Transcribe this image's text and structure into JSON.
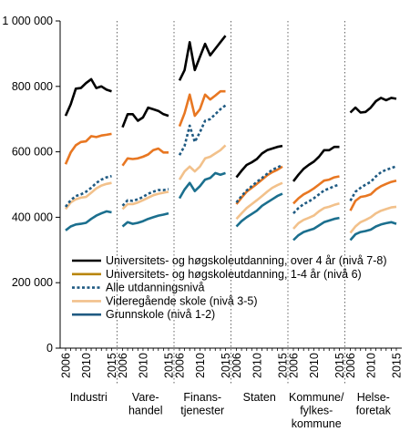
{
  "chart_data": {
    "type": "line",
    "title": "",
    "xlabel": "",
    "ylabel": "",
    "ylim": [
      0,
      1000000
    ],
    "y_ticks": [
      0,
      200000,
      400000,
      600000,
      800000,
      1000000
    ],
    "y_tick_labels": [
      "0",
      "200 000",
      "400 000",
      "600 000",
      "800 000",
      "1 000 000"
    ],
    "x": [
      2006,
      2007,
      2008,
      2009,
      2010,
      2011,
      2012,
      2013,
      2014,
      2015
    ],
    "x_tick_labels": [
      "2006",
      "2010",
      "2015"
    ],
    "grid": false,
    "legend_position": "inside-bottom",
    "panel_separators": "dotted",
    "panels": [
      {
        "category": [
          "Industri"
        ],
        "series": [
          {
            "name": "Universitets- og høgskoleutdanning, over 4 år (nivå 7-8)",
            "values": [
              710000,
              745000,
              793000,
              795000,
              810000,
              822000,
              795000,
              800000,
              790000,
              785000
            ]
          },
          {
            "name": "Universitets- og høgskoleutdanning, 1-4 år (nivå 6)",
            "values": [
              562000,
              598000,
              620000,
              630000,
              632000,
              648000,
              645000,
              650000,
              652000,
              655000
            ]
          },
          {
            "name": "Alle utdanningsnivå",
            "values": [
              432000,
              452000,
              465000,
              470000,
              478000,
              490000,
              505000,
              515000,
              522000,
              526000
            ]
          },
          {
            "name": "Videregående skole (nivå 3-5)",
            "values": [
              425000,
              445000,
              455000,
              460000,
              462000,
              475000,
              488000,
              497000,
              502000,
              505000
            ]
          },
          {
            "name": "Grunnskole (nivå 1-2)",
            "values": [
              360000,
              372000,
              378000,
              380000,
              383000,
              395000,
              405000,
              412000,
              418000,
              415000
            ]
          }
        ]
      },
      {
        "category": [
          "Vare-",
          "handel"
        ],
        "series": [
          {
            "name": "Universitets- og høgskoleutdanning, over 4 år (nivå 7-8)",
            "values": [
              675000,
              715000,
              715000,
              695000,
              705000,
              735000,
              730000,
              725000,
              715000,
              710000
            ]
          },
          {
            "name": "Universitets- og høgskoleutdanning, 1-4 år (nivå 6)",
            "values": [
              558000,
              580000,
              578000,
              580000,
              585000,
              592000,
              605000,
              610000,
              598000,
              598000
            ]
          },
          {
            "name": "Alle utdanningsnivå",
            "values": [
              435000,
              452000,
              450000,
              455000,
              462000,
              472000,
              478000,
              483000,
              483000,
              486000
            ]
          },
          {
            "name": "Videregående skole (nivå 3-5)",
            "values": [
              425000,
              440000,
              440000,
              445000,
              452000,
              460000,
              467000,
              472000,
              475000,
              478000
            ]
          },
          {
            "name": "Grunnskole (nivå 1-2)",
            "values": [
              372000,
              385000,
              380000,
              383000,
              388000,
              395000,
              400000,
              405000,
              408000,
              412000
            ]
          }
        ]
      },
      {
        "category": [
          "Finans-",
          "tjenester"
        ],
        "series": [
          {
            "name": "Universitets- og høgskoleutdanning, over 4 år (nivå 7-8)",
            "values": [
              818000,
              850000,
              935000,
              850000,
              890000,
              930000,
              895000,
              915000,
              935000,
              955000
            ]
          },
          {
            "name": "Universitets- og høgskoleutdanning, 1-4 år (nivå 6)",
            "values": [
              678000,
              718000,
              775000,
              710000,
              730000,
              775000,
              760000,
              772000,
              785000,
              785000
            ]
          },
          {
            "name": "Alle utdanningsnivå",
            "values": [
              590000,
              618000,
              680000,
              630000,
              660000,
              695000,
              700000,
              715000,
              730000,
              742000
            ]
          },
          {
            "name": "Videregående skole (nivå 3-5)",
            "values": [
              515000,
              540000,
              555000,
              540000,
              555000,
              580000,
              585000,
              595000,
              605000,
              620000
            ]
          },
          {
            "name": "Grunnskole (nivå 1-2)",
            "values": [
              458000,
              485000,
              505000,
              480000,
              495000,
              515000,
              520000,
              535000,
              530000,
              535000
            ]
          }
        ]
      },
      {
        "category": [
          "Staten"
        ],
        "series": [
          {
            "name": "Universitets- og høgskoleutdanning, over 4 år (nivå 7-8)",
            "values": [
              522000,
              542000,
              560000,
              568000,
              578000,
              595000,
              605000,
              610000,
              615000,
              618000
            ]
          },
          {
            "name": "Universitets- og høgskoleutdanning, 1-4 år (nivå 6)",
            "values": [
              440000,
              460000,
              478000,
              490000,
              502000,
              515000,
              528000,
              538000,
              545000,
              555000
            ]
          },
          {
            "name": "Alle utdanningsnivå",
            "values": [
              445000,
              465000,
              482000,
              495000,
              508000,
              520000,
              533000,
              545000,
              552000,
              560000
            ]
          },
          {
            "name": "Videregående skole (nivå 3-5)",
            "values": [
              395000,
              412000,
              428000,
              440000,
              452000,
              465000,
              478000,
              490000,
              498000,
              505000
            ]
          },
          {
            "name": "Grunnskole (nivå 1-2)",
            "values": [
              372000,
              388000,
              400000,
              410000,
              420000,
              435000,
              445000,
              455000,
              465000,
              472000
            ]
          }
        ]
      },
      {
        "category": [
          "Kommune/",
          "fylkes-",
          "kommune"
        ],
        "series": [
          {
            "name": "Universitets- og høgskoleutdanning, over 4 år (nivå 7-8)",
            "values": [
              510000,
              530000,
              548000,
              560000,
              570000,
              585000,
              605000,
              605000,
              615000,
              615000
            ]
          },
          {
            "name": "Universitets- og høgskoleutdanning, 1-4 år (nivå 6)",
            "values": [
              442000,
              458000,
              470000,
              478000,
              488000,
              500000,
              512000,
              515000,
              522000,
              525000
            ]
          },
          {
            "name": "Alle utdanningsnivå",
            "values": [
              412000,
              428000,
              440000,
              448000,
              458000,
              470000,
              482000,
              488000,
              495000,
              500000
            ]
          },
          {
            "name": "Videregående skole (nivå 3-5)",
            "values": [
              365000,
              382000,
              392000,
              398000,
              405000,
              418000,
              428000,
              432000,
              438000,
              442000
            ]
          },
          {
            "name": "Grunnskole (nivå 1-2)",
            "values": [
              330000,
              345000,
              355000,
              360000,
              365000,
              375000,
              385000,
              390000,
              395000,
              398000
            ]
          }
        ]
      },
      {
        "category": [
          "Helse-",
          "foretak"
        ],
        "series": [
          {
            "name": "Universitets- og høgskoleutdanning, over 4 år (nivå 7-8)",
            "values": [
              720000,
              735000,
              720000,
              722000,
              735000,
              755000,
              765000,
              758000,
              765000,
              762000
            ]
          },
          {
            "name": "Universitets- og høgskoleutdanning, 1-4 år (nivå 6)",
            "values": [
              420000,
              450000,
              462000,
              465000,
              470000,
              485000,
              495000,
              502000,
              508000,
              512000
            ]
          },
          {
            "name": "Alle utdanningsnivå",
            "values": [
              450000,
              478000,
              490000,
              500000,
              508000,
              525000,
              538000,
              545000,
              550000,
              556000
            ]
          },
          {
            "name": "Videregående skole (nivå 3-5)",
            "values": [
              352000,
              372000,
              385000,
              392000,
              400000,
              412000,
              420000,
              425000,
              430000,
              432000
            ]
          },
          {
            "name": "Grunnskole (nivå 1-2)",
            "values": [
              330000,
              348000,
              355000,
              358000,
              362000,
              372000,
              378000,
              382000,
              385000,
              380000
            ]
          }
        ]
      }
    ],
    "legend": [
      {
        "label": "Universitets- og høgskoleutdanning, over 4 år (nivå 7-8)",
        "color": "#000000",
        "dash": false
      },
      {
        "label": "Universitets- og høgskoleutdanning, 1-4 år (nivå 6)",
        "color": "#b8860b",
        "dash": false
      },
      {
        "label": "Alle utdanningsnivå",
        "color": "#1f5a82",
        "dash": true
      },
      {
        "label": "Videregående skole (nivå 3-5)",
        "color": "#f2c18b",
        "dash": false
      },
      {
        "label": "Grunnskole (nivå 1-2)",
        "color": "#1f5a82",
        "dash": false
      }
    ],
    "series_colors": [
      "#000000",
      "#e87722",
      "#1f5a82",
      "#f2c18b",
      "#1b6f8e"
    ],
    "series_dash": [
      false,
      false,
      true,
      false,
      false
    ]
  }
}
